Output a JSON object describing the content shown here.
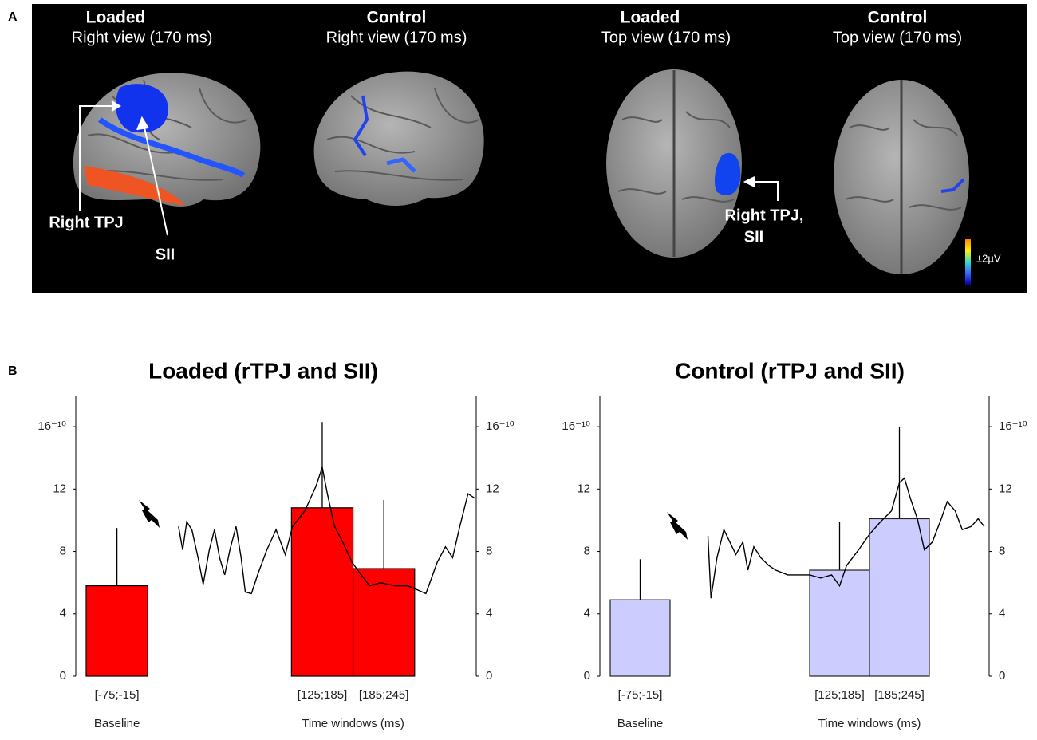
{
  "panel_a": {
    "label": "A",
    "views": [
      {
        "condition": "Loaded",
        "view": "Right view (170 ms)"
      },
      {
        "condition": "Control",
        "view": "Right view (170 ms)"
      },
      {
        "condition": "Loaded",
        "view": "Top view (170 ms)"
      },
      {
        "condition": "Control",
        "view": "Top view (170 ms)"
      }
    ],
    "annotations": [
      "Right TPJ",
      "SII",
      "Right TPJ,",
      "SII"
    ],
    "scale_label": "±2µV"
  },
  "panel_b_label": "B",
  "chart_data": [
    {
      "type": "bar",
      "title": "Loaded (rTPJ and SII)",
      "categories": [
        "[-75;-15]",
        "[125;185]",
        "[185;245]"
      ],
      "windows": [
        [
          -75,
          -15
        ],
        [
          125,
          185
        ],
        [
          185,
          245
        ]
      ],
      "values": [
        5.8,
        10.8,
        6.9
      ],
      "errors": [
        3.7,
        5.5,
        4.4
      ],
      "color": "#ff0000",
      "edge_color": "#000000",
      "line": {
        "color": "#000000",
        "x": [
          15,
          19,
          23,
          28,
          34,
          39,
          45,
          50,
          55,
          60,
          65,
          71,
          76,
          80,
          86,
          92,
          101,
          110,
          119,
          126,
          138,
          149,
          155,
          160,
          167,
          175,
          184,
          193,
          201,
          212,
          226,
          238,
          249,
          256,
          267,
          275,
          282,
          289,
          297,
          304
        ],
        "y": [
          9.6,
          8.1,
          9.9,
          9.4,
          7.6,
          5.9,
          8.1,
          9.4,
          7.6,
          6.5,
          8.1,
          9.6,
          7.6,
          5.4,
          5.3,
          6.5,
          8.1,
          9.4,
          7.8,
          9.6,
          10.6,
          12.2,
          13.4,
          11.7,
          9.6,
          8.6,
          7.3,
          6.5,
          5.8,
          6.0,
          5.8,
          5.8,
          5.5,
          5.3,
          7.3,
          8.3,
          7.6,
          9.6,
          11.7,
          11.4
        ]
      },
      "baseline_label": "Baseline",
      "xlabel": "Time windows (ms)",
      "xlim": [
        -75,
        305
      ],
      "ylim": [
        0,
        18
      ],
      "y2lim": [
        0,
        18
      ],
      "yticks": [
        0,
        4,
        8,
        12,
        {
          "value": 16,
          "label": "16⁻¹⁰"
        }
      ],
      "y2ticks": [
        0,
        4,
        8,
        12,
        {
          "value": 16,
          "label": "16⁻¹⁰"
        }
      ]
    },
    {
      "type": "bar",
      "title": "Control (rTPJ and SII)",
      "categories": [
        "[-75;-15]",
        "[125;185]",
        "[185;245]"
      ],
      "windows": [
        [
          -75,
          -15
        ],
        [
          125,
          185
        ],
        [
          185,
          245
        ]
      ],
      "values": [
        4.9,
        6.8,
        10.1
      ],
      "errors": [
        2.6,
        3.1,
        5.9
      ],
      "color": "#ccccff",
      "edge_color": "#222222",
      "line": {
        "color": "#000000",
        "x": [
          23,
          26,
          32,
          39,
          45,
          51,
          58,
          63,
          69,
          76,
          84,
          91,
          103,
          114,
          125,
          136,
          147,
          155,
          162,
          174,
          185,
          196,
          207,
          215,
          220,
          226,
          233,
          240,
          248,
          257,
          263,
          271,
          278,
          287,
          294,
          300
        ],
        "y": [
          9.0,
          5.0,
          7.6,
          9.4,
          8.6,
          7.8,
          8.6,
          6.8,
          8.3,
          7.6,
          7.1,
          6.8,
          6.5,
          6.5,
          6.5,
          6.3,
          6.5,
          5.8,
          7.1,
          8.1,
          9.1,
          9.9,
          10.6,
          12.4,
          12.7,
          11.4,
          10.1,
          8.1,
          8.6,
          10.1,
          11.2,
          10.6,
          9.4,
          9.6,
          10.1,
          9.6
        ]
      },
      "baseline_label": "Baseline",
      "xlabel": "Time windows (ms)",
      "xlim": [
        -75,
        305
      ],
      "ylim": [
        0,
        18
      ],
      "y2lim": [
        0,
        18
      ],
      "yticks": [
        0,
        4,
        8,
        12,
        {
          "value": 16,
          "label": "16⁻¹⁰"
        }
      ],
      "y2ticks": [
        0,
        4,
        8,
        12,
        {
          "value": 16,
          "label": "16⁻¹⁰"
        }
      ]
    }
  ]
}
